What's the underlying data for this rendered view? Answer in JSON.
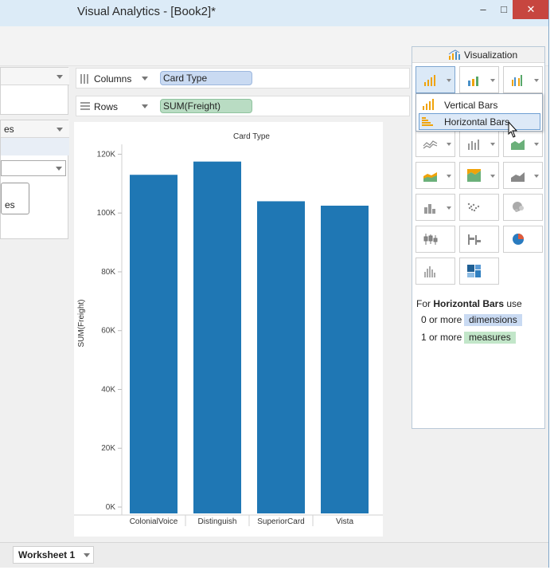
{
  "app": {
    "title": "Visual Analytics - [Book2]*"
  },
  "window_controls": {
    "minimize": "–",
    "maximize": "□",
    "close": "✕"
  },
  "shelves": {
    "columns_label": "Columns",
    "columns_pill": "Card Type",
    "rows_label": "Rows",
    "rows_pill": "SUM(Freight)"
  },
  "left_panel": {
    "partial_label": "es",
    "partial_button": "es"
  },
  "visualization": {
    "title": "Visualization",
    "dropdown": [
      {
        "label": "Vertical Bars"
      },
      {
        "label": "Horizontal Bars"
      }
    ],
    "help": {
      "prefix": "For",
      "chart_name": "Horizontal Bars",
      "suffix": "use",
      "req1_count": "0 or more",
      "req1_type": "dimensions",
      "req2_count": "1 or more",
      "req2_type": "measures"
    }
  },
  "tabs": {
    "worksheet": "Worksheet 1"
  },
  "colors": {
    "bar": "#1f77b4",
    "dimension": "#c9daf2",
    "measure": "#b9dcc3"
  },
  "chart_data": {
    "type": "bar",
    "title": "Card Type",
    "xlabel": "",
    "ylabel": "SUM(Freight)",
    "categories": [
      "ColonialVoice",
      "Distinguish",
      "SuperiorCard",
      "Vista"
    ],
    "values": [
      113000,
      117500,
      104000,
      102500
    ],
    "yticks": [
      "0K",
      "20K",
      "40K",
      "60K",
      "80K",
      "100K",
      "120K"
    ],
    "ylim": [
      0,
      125000
    ],
    "grid": false
  }
}
